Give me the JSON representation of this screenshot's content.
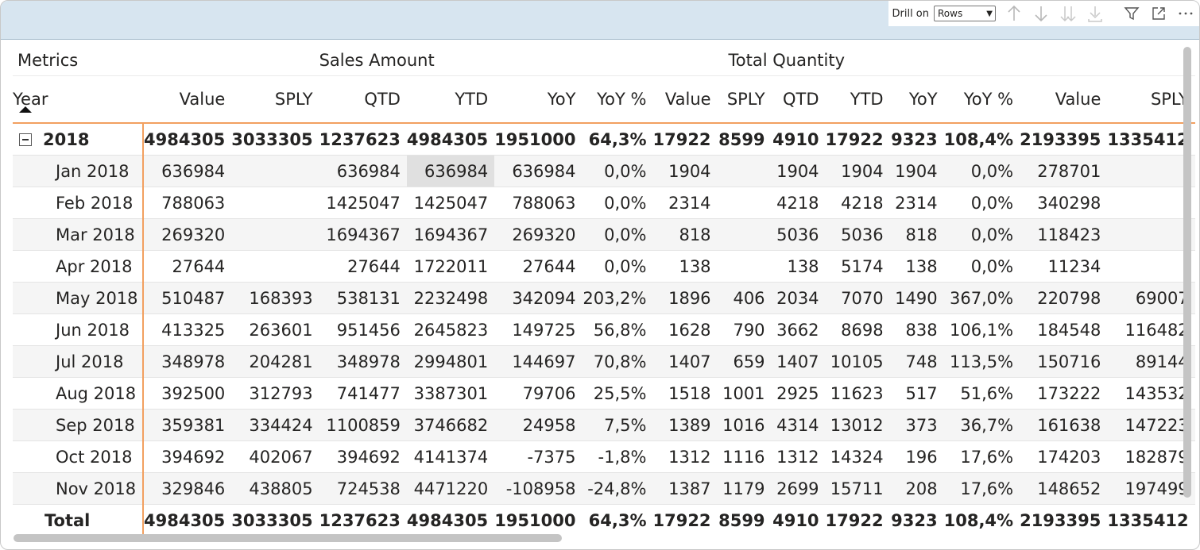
{
  "toolbar": {
    "drill_label": "Drill on",
    "drill_value": "Rows",
    "icons": [
      "drill-up-icon",
      "drill-down-icon",
      "expand-all-icon",
      "expand-next-level-icon",
      "filter-icon",
      "focus-mode-icon",
      "more-options-icon"
    ]
  },
  "matrix": {
    "metrics_label": "Metrics",
    "groups": [
      "Sales Amount",
      "Total Quantity"
    ],
    "year_label": "Year",
    "columns": [
      "Value",
      "SPLY",
      "QTD",
      "YTD",
      "YoY",
      "YoY %",
      "Value",
      "SPLY",
      "QTD",
      "YTD",
      "YoY",
      "YoY %",
      "Value",
      "SPLY"
    ],
    "year_row": {
      "label": "2018",
      "values": [
        "4984305",
        "3033305",
        "1237623",
        "4984305",
        "1951000",
        "64,3%",
        "17922",
        "8599",
        "4910",
        "17922",
        "9323",
        "108,4%",
        "2193395",
        "1335412"
      ]
    },
    "rows": [
      {
        "label": "Jan 2018",
        "values": [
          "636984",
          "",
          "636984",
          "636984",
          "636984",
          "0,0%",
          "1904",
          "",
          "1904",
          "1904",
          "1904",
          "0,0%",
          "278701",
          ""
        ]
      },
      {
        "label": "Feb 2018",
        "values": [
          "788063",
          "",
          "1425047",
          "1425047",
          "788063",
          "0,0%",
          "2314",
          "",
          "4218",
          "4218",
          "2314",
          "0,0%",
          "340298",
          ""
        ]
      },
      {
        "label": "Mar 2018",
        "values": [
          "269320",
          "",
          "1694367",
          "1694367",
          "269320",
          "0,0%",
          "818",
          "",
          "5036",
          "5036",
          "818",
          "0,0%",
          "118423",
          ""
        ]
      },
      {
        "label": "Apr 2018",
        "values": [
          "27644",
          "",
          "27644",
          "1722011",
          "27644",
          "0,0%",
          "138",
          "",
          "138",
          "5174",
          "138",
          "0,0%",
          "11234",
          ""
        ]
      },
      {
        "label": "May 2018",
        "values": [
          "510487",
          "168393",
          "538131",
          "2232498",
          "342094",
          "203,2%",
          "1896",
          "406",
          "2034",
          "7070",
          "1490",
          "367,0%",
          "220798",
          "69007"
        ]
      },
      {
        "label": "Jun 2018",
        "values": [
          "413325",
          "263601",
          "951456",
          "2645823",
          "149725",
          "56,8%",
          "1628",
          "790",
          "3662",
          "8698",
          "838",
          "106,1%",
          "184548",
          "116482"
        ]
      },
      {
        "label": "Jul 2018",
        "values": [
          "348978",
          "204281",
          "348978",
          "2994801",
          "144697",
          "70,8%",
          "1407",
          "659",
          "1407",
          "10105",
          "748",
          "113,5%",
          "150716",
          "89144"
        ]
      },
      {
        "label": "Aug 2018",
        "values": [
          "392500",
          "312793",
          "741477",
          "3387301",
          "79706",
          "25,5%",
          "1518",
          "1001",
          "2925",
          "11623",
          "517",
          "51,6%",
          "173222",
          "143532"
        ]
      },
      {
        "label": "Sep 2018",
        "values": [
          "359381",
          "334424",
          "1100859",
          "3746682",
          "24958",
          "7,5%",
          "1389",
          "1016",
          "4314",
          "13012",
          "373",
          "36,7%",
          "161638",
          "147223"
        ]
      },
      {
        "label": "Oct 2018",
        "values": [
          "394692",
          "402067",
          "394692",
          "4141374",
          "-7375",
          "-1,8%",
          "1312",
          "1116",
          "1312",
          "14324",
          "196",
          "17,6%",
          "174203",
          "182879"
        ]
      },
      {
        "label": "Nov 2018",
        "values": [
          "329846",
          "438805",
          "724538",
          "4471220",
          "-108958",
          "-24,8%",
          "1387",
          "1179",
          "2699",
          "15711",
          "208",
          "17,6%",
          "148652",
          "197499"
        ]
      }
    ],
    "total_row": {
      "label": "Total",
      "values": [
        "4984305",
        "3033305",
        "1237623",
        "4984305",
        "1951000",
        "64,3%",
        "17922",
        "8599",
        "4910",
        "17922",
        "9323",
        "108,4%",
        "2193395",
        "1335412"
      ]
    }
  }
}
